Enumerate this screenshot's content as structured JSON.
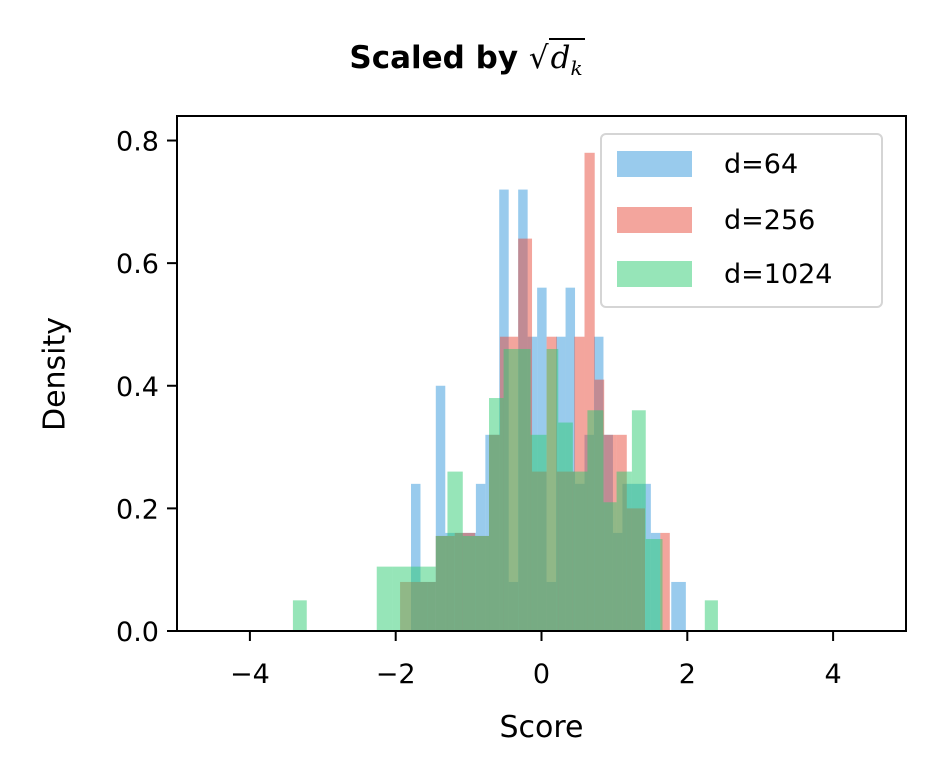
{
  "chart_data": {
    "type": "bar",
    "subtype": "overlaid-histogram",
    "title": "Scaled by √d_k",
    "title_parts": {
      "text": "Scaled by ",
      "math_symbol": "√",
      "math_var": "d",
      "math_sub": "k"
    },
    "xlabel": "Score",
    "ylabel": "Density",
    "xlim": [
      -5,
      5
    ],
    "ylim": [
      0,
      0.84
    ],
    "xticks": [
      -4,
      -2,
      0,
      2,
      4
    ],
    "xtick_labels": [
      "−4",
      "−2",
      "0",
      "2",
      "4"
    ],
    "yticks": [
      0.0,
      0.2,
      0.4,
      0.6,
      0.8
    ],
    "ytick_labels": [
      "0.0",
      "0.2",
      "0.4",
      "0.6",
      "0.8"
    ],
    "grid": false,
    "legend_position": "upper right",
    "alpha": 0.5,
    "series": [
      {
        "name": "d=64",
        "color": "#3498db",
        "bins": [
          {
            "x0": -1.79,
            "x1": -1.66,
            "y": 0.24
          },
          {
            "x0": -1.66,
            "x1": -1.45,
            "y": 0.08
          },
          {
            "x0": -1.45,
            "x1": -1.32,
            "y": 0.4
          },
          {
            "x0": -1.32,
            "x1": -1.19,
            "y": 0.16
          },
          {
            "x0": -1.19,
            "x1": -0.9,
            "y": 0.16
          },
          {
            "x0": -0.9,
            "x1": -0.77,
            "y": 0.24
          },
          {
            "x0": -0.77,
            "x1": -0.58,
            "y": 0.32
          },
          {
            "x0": -0.58,
            "x1": -0.45,
            "y": 0.72
          },
          {
            "x0": -0.45,
            "x1": -0.32,
            "y": 0.08
          },
          {
            "x0": -0.32,
            "x1": -0.19,
            "y": 0.72
          },
          {
            "x0": -0.19,
            "x1": -0.06,
            "y": 0.48
          },
          {
            "x0": -0.06,
            "x1": 0.07,
            "y": 0.56
          },
          {
            "x0": 0.07,
            "x1": 0.2,
            "y": 0.08
          },
          {
            "x0": 0.2,
            "x1": 0.33,
            "y": 0.48
          },
          {
            "x0": 0.33,
            "x1": 0.46,
            "y": 0.56
          },
          {
            "x0": 0.46,
            "x1": 0.59,
            "y": 0.24
          },
          {
            "x0": 0.59,
            "x1": 0.72,
            "y": 0.32
          },
          {
            "x0": 0.72,
            "x1": 0.85,
            "y": 0.48
          },
          {
            "x0": 0.85,
            "x1": 0.98,
            "y": 0.32
          },
          {
            "x0": 0.98,
            "x1": 1.11,
            "y": 0.16
          },
          {
            "x0": 1.11,
            "x1": 1.24,
            "y": 0.24
          },
          {
            "x0": 1.24,
            "x1": 1.37,
            "y": 0.24
          },
          {
            "x0": 1.37,
            "x1": 1.5,
            "y": 0.24
          },
          {
            "x0": 1.5,
            "x1": 1.63,
            "y": 0.16
          },
          {
            "x0": 1.78,
            "x1": 1.98,
            "y": 0.08
          }
        ]
      },
      {
        "name": "d=256",
        "color": "#e74c3c",
        "bins": [
          {
            "x0": -1.94,
            "x1": -1.75,
            "y": 0.08
          },
          {
            "x0": -1.75,
            "x1": -1.56,
            "y": 0.08
          },
          {
            "x0": -1.56,
            "x1": -1.45,
            "y": 0.08
          },
          {
            "x0": -1.45,
            "x1": -1.19,
            "y": 0.155
          },
          {
            "x0": -1.19,
            "x1": -0.91,
            "y": 0.16
          },
          {
            "x0": -0.91,
            "x1": -0.72,
            "y": 0.155
          },
          {
            "x0": -0.72,
            "x1": -0.57,
            "y": 0.32
          },
          {
            "x0": -0.57,
            "x1": -0.32,
            "y": 0.48
          },
          {
            "x0": -0.32,
            "x1": -0.13,
            "y": 0.64
          },
          {
            "x0": -0.13,
            "x1": 0.07,
            "y": 0.26
          },
          {
            "x0": 0.07,
            "x1": 0.21,
            "y": 0.48
          },
          {
            "x0": 0.21,
            "x1": 0.45,
            "y": 0.26
          },
          {
            "x0": 0.45,
            "x1": 0.59,
            "y": 0.48
          },
          {
            "x0": 0.59,
            "x1": 0.73,
            "y": 0.78
          },
          {
            "x0": 0.73,
            "x1": 0.86,
            "y": 0.41
          },
          {
            "x0": 0.86,
            "x1": 1.03,
            "y": 0.32
          },
          {
            "x0": 1.03,
            "x1": 1.17,
            "y": 0.32
          },
          {
            "x0": 1.17,
            "x1": 1.42,
            "y": 0.2
          },
          {
            "x0": 1.63,
            "x1": 1.76,
            "y": 0.16
          }
        ]
      },
      {
        "name": "d=1024",
        "color": "#2ecc71",
        "bins": [
          {
            "x0": -3.41,
            "x1": -3.22,
            "y": 0.05
          },
          {
            "x0": -2.26,
            "x1": -2.05,
            "y": 0.105
          },
          {
            "x0": -2.05,
            "x1": -1.45,
            "y": 0.105
          },
          {
            "x0": -1.45,
            "x1": -1.29,
            "y": 0.155
          },
          {
            "x0": -1.29,
            "x1": -1.08,
            "y": 0.26
          },
          {
            "x0": -1.08,
            "x1": -0.72,
            "y": 0.155
          },
          {
            "x0": -0.72,
            "x1": -0.52,
            "y": 0.38
          },
          {
            "x0": -0.52,
            "x1": -0.15,
            "y": 0.46
          },
          {
            "x0": -0.15,
            "x1": 0.07,
            "y": 0.32
          },
          {
            "x0": 0.07,
            "x1": 0.23,
            "y": 0.46
          },
          {
            "x0": 0.23,
            "x1": 0.43,
            "y": 0.34
          },
          {
            "x0": 0.43,
            "x1": 0.63,
            "y": 0.26
          },
          {
            "x0": 0.63,
            "x1": 0.85,
            "y": 0.36
          },
          {
            "x0": 0.85,
            "x1": 1.03,
            "y": 0.21
          },
          {
            "x0": 1.03,
            "x1": 1.24,
            "y": 0.26
          },
          {
            "x0": 1.24,
            "x1": 1.43,
            "y": 0.36
          },
          {
            "x0": 1.43,
            "x1": 1.66,
            "y": 0.15
          },
          {
            "x0": 2.24,
            "x1": 2.42,
            "y": 0.05
          }
        ]
      }
    ]
  },
  "legend": {
    "items": [
      {
        "label": "d=64",
        "color": "#3498db"
      },
      {
        "label": "d=256",
        "color": "#e74c3c"
      },
      {
        "label": "d=1024",
        "color": "#2ecc71"
      }
    ]
  }
}
